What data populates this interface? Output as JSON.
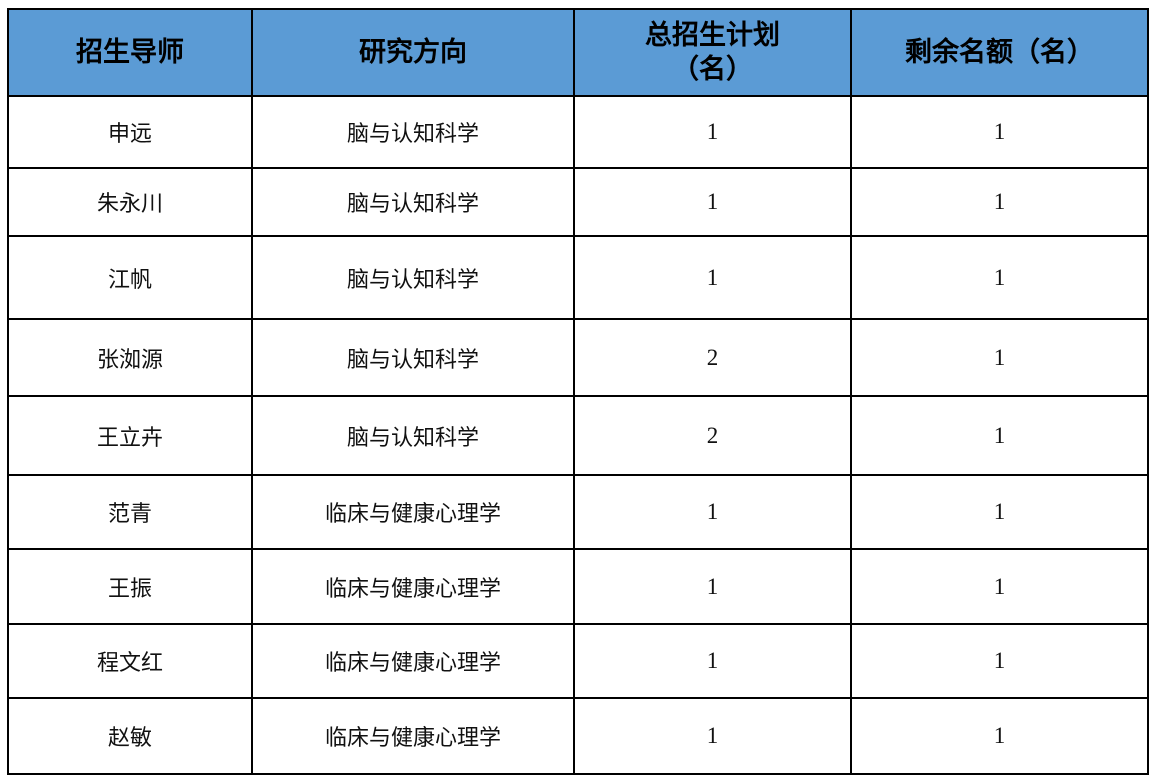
{
  "header": {
    "advisor": "招生导师",
    "direction": "研究方向",
    "total_plan": "总招生计划（名）",
    "remaining": "剩余名额（名）"
  },
  "rows": [
    {
      "advisor": "申远",
      "direction": "脑与认知科学",
      "total": "1",
      "remaining": "1"
    },
    {
      "advisor": "朱永川",
      "direction": "脑与认知科学",
      "total": "1",
      "remaining": "1"
    },
    {
      "advisor": "江帆",
      "direction": "脑与认知科学",
      "total": "1",
      "remaining": "1"
    },
    {
      "advisor": "张洳源",
      "direction": "脑与认知科学",
      "total": "2",
      "remaining": "1"
    },
    {
      "advisor": "王立卉",
      "direction": "脑与认知科学",
      "total": "2",
      "remaining": "1"
    },
    {
      "advisor": "范青",
      "direction": "临床与健康心理学",
      "total": "1",
      "remaining": "1"
    },
    {
      "advisor": "王振",
      "direction": "临床与健康心理学",
      "total": "1",
      "remaining": "1"
    },
    {
      "advisor": "程文红",
      "direction": "临床与健康心理学",
      "total": "1",
      "remaining": "1"
    },
    {
      "advisor": "赵敏",
      "direction": "临床与健康心理学",
      "total": "1",
      "remaining": "1"
    }
  ],
  "colors": {
    "header_bg": "#5b9bd5"
  }
}
